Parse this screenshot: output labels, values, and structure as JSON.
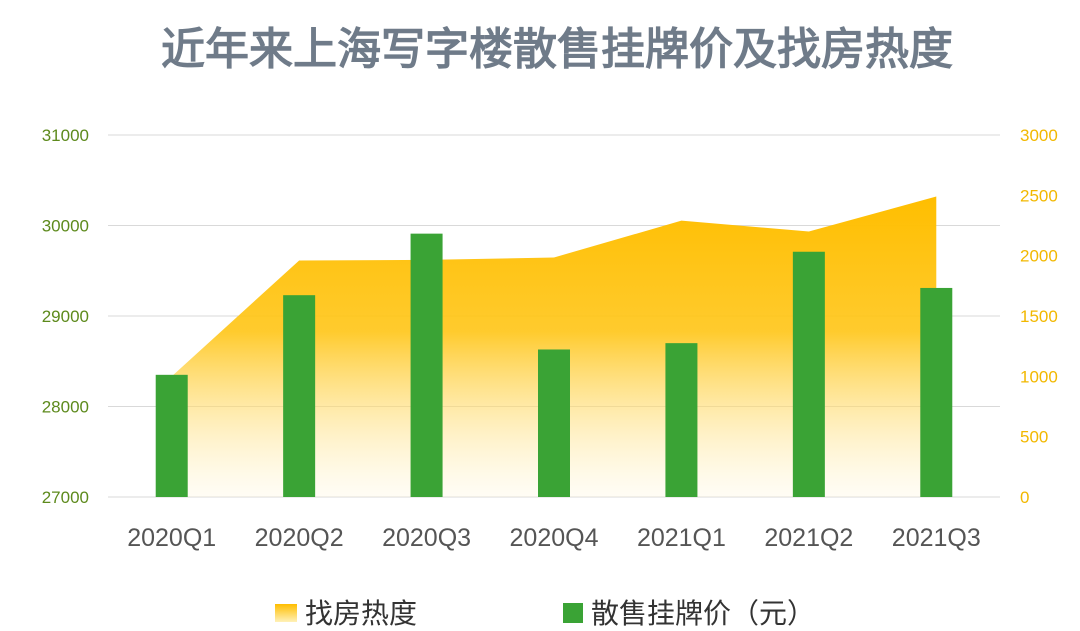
{
  "chart_data": {
    "type": "bar+area",
    "title": "近年来上海写字楼散售挂牌价及找房热度",
    "categories": [
      "2020Q1",
      "2020Q2",
      "2020Q3",
      "2020Q4",
      "2021Q1",
      "2021Q2",
      "2021Q3"
    ],
    "series": [
      {
        "name": "找房热度",
        "type": "area",
        "axis": "right",
        "color": "#ffbf00",
        "values": [
          1000,
          1960,
          1965,
          1985,
          2290,
          2200,
          2490
        ]
      },
      {
        "name": "散售挂牌价（元）",
        "type": "bar",
        "axis": "left",
        "color": "#3aa335",
        "values": [
          28350,
          29230,
          29910,
          28630,
          28700,
          29710,
          29310
        ]
      }
    ],
    "y_left": {
      "ylim": [
        27000,
        31000
      ],
      "ticks": [
        "27000",
        "28000",
        "29000",
        "30000",
        "31000"
      ],
      "color": "#5d8a1c"
    },
    "y_right": {
      "ylim": [
        0,
        3000
      ],
      "ticks": [
        "0",
        "500",
        "1000",
        "1500",
        "2000",
        "2500",
        "3000"
      ],
      "color": "#f2b800"
    },
    "grid": true,
    "legend": "bottom"
  }
}
